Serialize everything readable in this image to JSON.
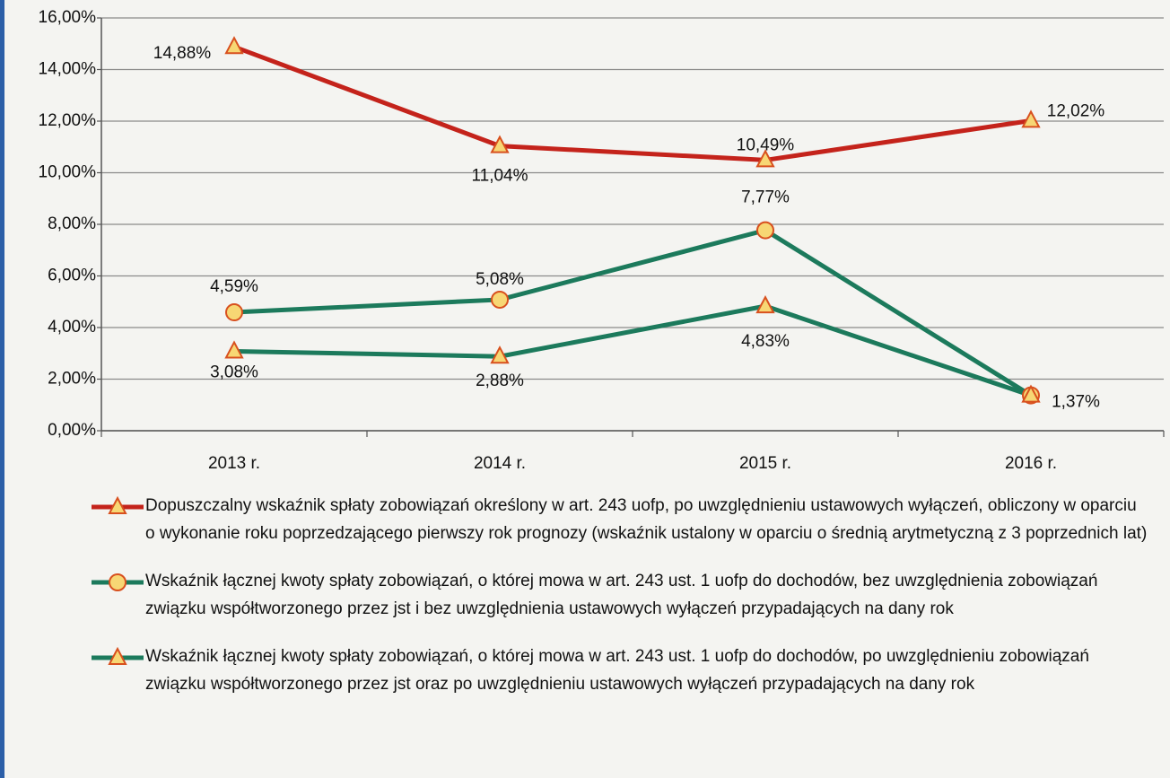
{
  "chart_data": {
    "type": "line",
    "categories": [
      "2013 r.",
      "2014 r.",
      "2015 r.",
      "2016 r."
    ],
    "ylim": [
      0,
      16
    ],
    "yticks": [
      {
        "value": 0,
        "label": "0,00%"
      },
      {
        "value": 2,
        "label": "2,00%"
      },
      {
        "value": 4,
        "label": "4,00%"
      },
      {
        "value": 6,
        "label": "6,00%"
      },
      {
        "value": 8,
        "label": "8,00%"
      },
      {
        "value": 10,
        "label": "10,00%"
      },
      {
        "value": 12,
        "label": "12,00%"
      },
      {
        "value": 14,
        "label": "14,00%"
      },
      {
        "value": 16,
        "label": "16,00%"
      }
    ],
    "grid": true,
    "series": [
      {
        "name": "Dopuszczalny wskaźnik spłaty zobowiązań określony w art. 243 uofp, po uwzględnieniu ustawowych wyłączeń, obliczony w oparciu o wykonanie roku poprzedzającego pierwszy rok prognozy (wskaźnik ustalony w oparciu o średnią arytmetyczną z 3 poprzednich lat)",
        "color": "#c4231b",
        "marker": "triangle",
        "values": [
          14.88,
          11.04,
          10.49,
          12.02
        ],
        "value_labels": [
          "14,88%",
          "11,04%",
          "10,49%",
          "12,02%"
        ]
      },
      {
        "name": "Wskaźnik łącznej kwoty spłaty zobowiązań, o której mowa w art. 243 ust. 1 uofp do dochodów, bez uwzględnienia zobowiązań związku współtworzonego przez jst i bez uwzględnienia ustawowych wyłączeń przypadających na dany rok",
        "color": "#1c7a5c",
        "marker": "circle",
        "values": [
          4.59,
          5.08,
          7.77,
          1.37
        ],
        "value_labels": [
          "4,59%",
          "5,08%",
          "7,77%",
          null
        ]
      },
      {
        "name": "Wskaźnik łącznej kwoty spłaty zobowiązań, o której mowa w art. 243 ust. 1 uofp do dochodów, po uwzględnieniu zobowiązań związku współtworzonego przez jst oraz po uwzględnieniu ustawowych wyłączeń przypadających na dany rok",
        "color": "#1c7a5c",
        "marker": "triangle",
        "values": [
          3.08,
          2.88,
          4.83,
          1.37
        ],
        "value_labels": [
          "3,08%",
          "2,88%",
          "4,83%",
          "1,37%"
        ]
      }
    ]
  }
}
